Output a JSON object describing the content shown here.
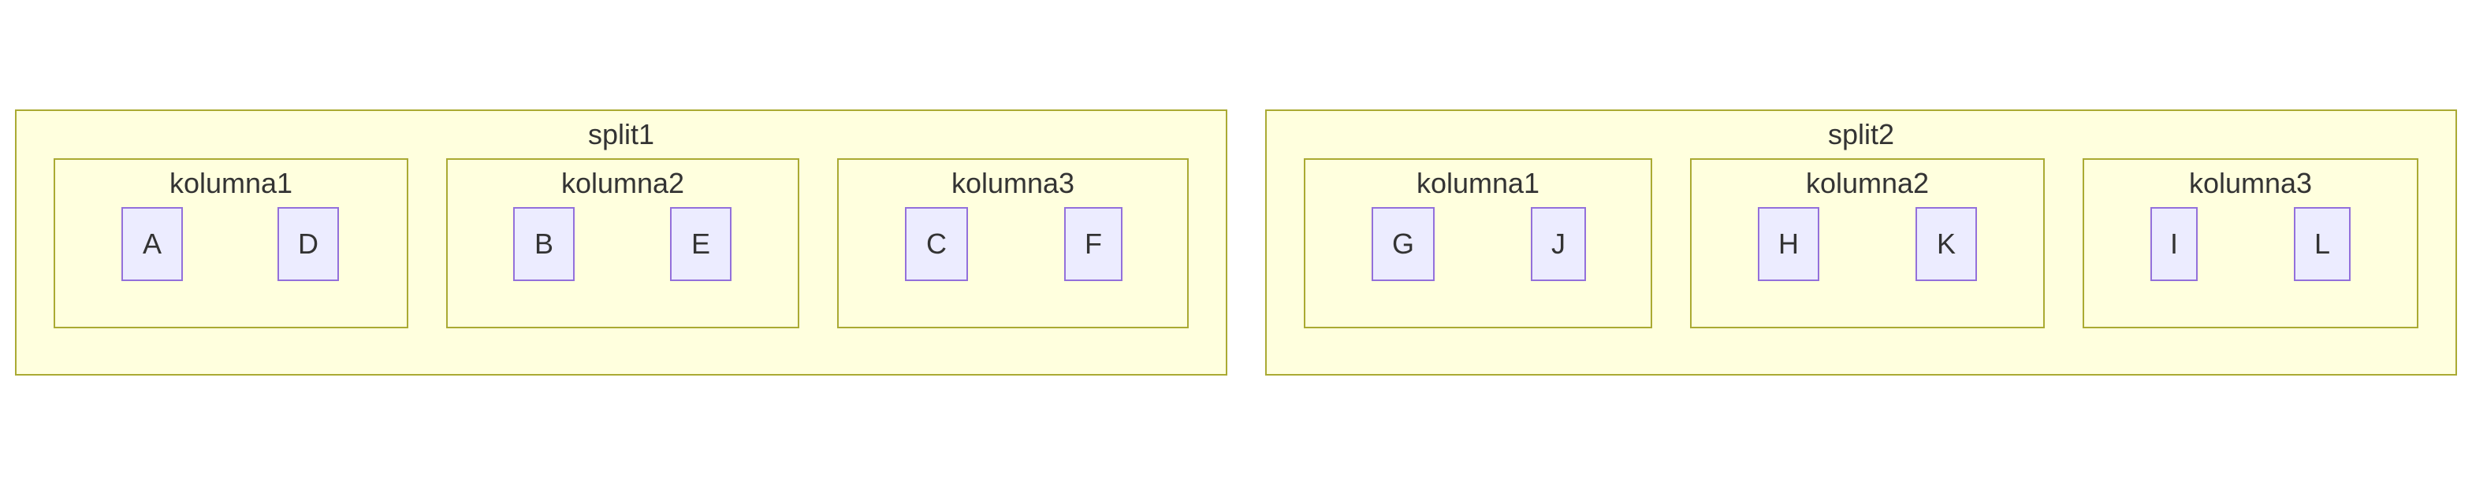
{
  "colors": {
    "cluster_fill": "#ffffde",
    "cluster_stroke": "#aaaa33",
    "node_fill": "#ececff",
    "node_stroke": "#9370db",
    "text": "#333333"
  },
  "splits": [
    {
      "title": "split1",
      "columns": [
        {
          "title": "kolumna1",
          "nodes": [
            "A",
            "D"
          ]
        },
        {
          "title": "kolumna2",
          "nodes": [
            "B",
            "E"
          ]
        },
        {
          "title": "kolumna3",
          "nodes": [
            "C",
            "F"
          ]
        }
      ]
    },
    {
      "title": "split2",
      "columns": [
        {
          "title": "kolumna1",
          "nodes": [
            "G",
            "J"
          ]
        },
        {
          "title": "kolumna2",
          "nodes": [
            "H",
            "K"
          ]
        },
        {
          "title": "kolumna3",
          "nodes": [
            "I",
            "L"
          ]
        }
      ]
    }
  ]
}
